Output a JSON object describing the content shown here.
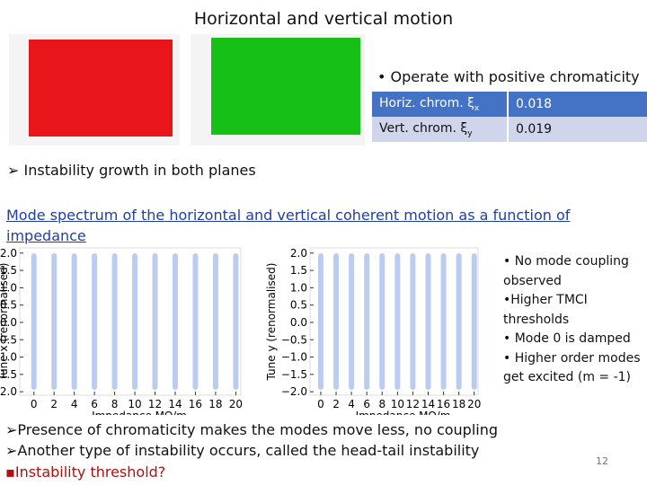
{
  "header": {
    "title": "Horizontal  and vertical motion"
  },
  "top_bullet": "Operate with positive chromaticity",
  "table": {
    "rows": [
      [
        "Horiz. chrom. ξ",
        "x",
        "0.018"
      ],
      [
        "Vert. chrom. ξ",
        "y",
        "0.019"
      ]
    ]
  },
  "growth": "Instability growth in both planes",
  "link": "Mode spectrum of the horizontal and vertical coherent motion as a function of impedance",
  "plots": [
    {
      "ylabel": "Tune x (renormalised)",
      "xlabel": "Impedance MΩ/m",
      "xlim": [
        -1.4,
        20.5
      ],
      "ylim": [
        -2.1,
        2.15
      ],
      "xticks": [
        0,
        2,
        4,
        6,
        8,
        10,
        12,
        14,
        16,
        18,
        20
      ],
      "yticks": [
        {
          "value": 2,
          "label": "2.0"
        },
        {
          "value": 1.5,
          "label": "1.5"
        },
        {
          "value": 1,
          "label": "1.0"
        },
        {
          "value": 0.5,
          "label": "0.5"
        },
        {
          "value": 0,
          "label": "0.0"
        },
        {
          "value": -0.5,
          "label": "−0.5"
        },
        {
          "value": -1,
          "label": "−1.0"
        },
        {
          "value": -1.5,
          "label": "−1.5"
        },
        {
          "value": -2,
          "label": "−2.0"
        }
      ]
    },
    {
      "ylabel": "Tune y (renormalised)",
      "xlabel": "Impedance MΩ/m",
      "xlim": [
        -1.4,
        20.5
      ],
      "ylim": [
        -2.1,
        2.15
      ],
      "xticks": [
        0,
        2,
        4,
        6,
        8,
        10,
        12,
        14,
        16,
        18,
        20
      ],
      "yticks": [
        {
          "value": 2,
          "label": "2.0"
        },
        {
          "value": 1.5,
          "label": "1.5"
        },
        {
          "value": 1,
          "label": "1.0"
        },
        {
          "value": 0.5,
          "label": "0.5"
        },
        {
          "value": 0,
          "label": "0.0"
        },
        {
          "value": -0.5,
          "label": "−0.5"
        },
        {
          "value": -1,
          "label": "−1.0"
        },
        {
          "value": -1.5,
          "label": "−1.5"
        },
        {
          "value": -2,
          "label": "−2.0"
        }
      ]
    }
  ],
  "notes": [
    "No mode coupling observed",
    "Higher TMCI thresholds",
    "Mode 0 is damped",
    "Higher order modes get excited (m = -1)"
  ],
  "bottom": [
    "Presence of chromaticity makes the modes move less, no coupling",
    "Another type of instability occurs, called the head-tail instability",
    "Instability threshold?"
  ],
  "page_number": "12"
}
